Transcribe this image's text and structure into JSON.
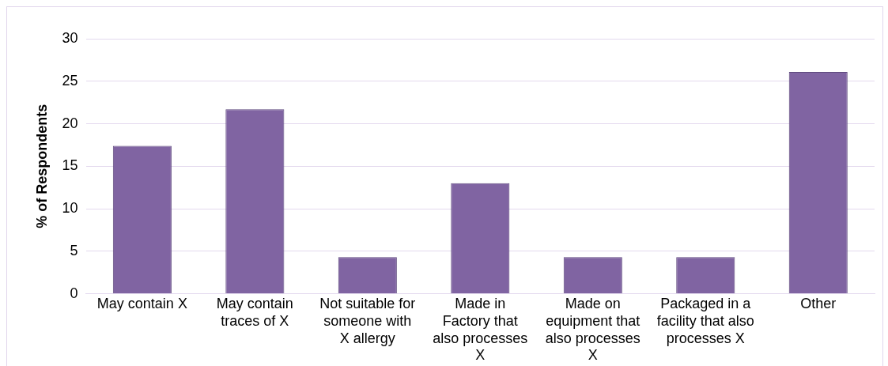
{
  "chart_data": {
    "type": "bar",
    "ylabel": "% of Respondents",
    "categories": [
      "May contain X",
      "May contain traces of X",
      "Not suitable for someone with X allergy",
      "Made in Factory that also processes X",
      "Made on equipment that also processes X",
      "Packaged in a facility that also processes X",
      "Other"
    ],
    "values": [
      17.4,
      21.7,
      4.3,
      13.0,
      4.3,
      4.3,
      26.1
    ],
    "color": "#8064a2",
    "ylim": [
      0,
      30
    ],
    "yticks": [
      0,
      5,
      10,
      15,
      20,
      25,
      30
    ],
    "grid": "y",
    "legend": false
  }
}
